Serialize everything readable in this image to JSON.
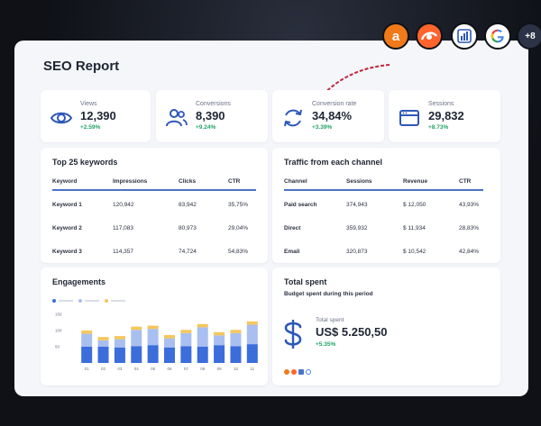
{
  "report": {
    "title": "SEO Report"
  },
  "integrations": {
    "more_count": "+8",
    "icons": [
      "ahrefs-icon",
      "semrush-icon",
      "google-analytics-icon",
      "google-icon"
    ]
  },
  "kpis": [
    {
      "label": "Views",
      "value": "12,390",
      "delta": "+2.59%",
      "icon": "eye-icon"
    },
    {
      "label": "Conversions",
      "value": "8,390",
      "delta": "+9.24%",
      "icon": "users-icon"
    },
    {
      "label": "Conversion rate",
      "value": "34,84%",
      "delta": "+3.39%",
      "icon": "refresh-icon"
    },
    {
      "label": "Sessions",
      "value": "29,832",
      "delta": "+8.73%",
      "icon": "browser-window-icon"
    }
  ],
  "keywords_table": {
    "title": "Top 25 keywords",
    "headers": [
      "Keyword",
      "Impressions",
      "Clicks",
      "CTR"
    ],
    "rows": [
      [
        "Keyword 1",
        "120,942",
        "83,942",
        "35,75%"
      ],
      [
        "Keyword 2",
        "117,083",
        "80,973",
        "29,04%"
      ],
      [
        "Keyword 3",
        "114,357",
        "74,724",
        "54,83%"
      ]
    ]
  },
  "traffic_table": {
    "title": "Traffic from each channel",
    "headers": [
      "Channel",
      "Sessions",
      "Revenue",
      "CTR"
    ],
    "rows": [
      [
        "Paid search",
        "374,943",
        "$ 12,050",
        "43,93%"
      ],
      [
        "Direct",
        "359,932",
        "$ 11,934",
        "28,83%"
      ],
      [
        "Email",
        "320,873",
        "$ 10,542",
        "42,84%"
      ]
    ]
  },
  "engagements": {
    "title": "Engagements"
  },
  "chart_data": {
    "type": "bar",
    "stacked": true,
    "categories": [
      "01",
      "02",
      "03",
      "04",
      "05",
      "06",
      "07",
      "08",
      "09",
      "10",
      "11"
    ],
    "series": [
      {
        "values": [
          50,
          50,
          48,
          52,
          55,
          48,
          52,
          50,
          55,
          52,
          58
        ],
        "color": "#3b6ddb"
      },
      {
        "values": [
          40,
          20,
          25,
          50,
          50,
          28,
          40,
          60,
          30,
          40,
          60
        ],
        "color": "#a9bff0"
      },
      {
        "values": [
          10,
          10,
          10,
          10,
          10,
          10,
          10,
          10,
          10,
          10,
          10
        ],
        "color": "#f5c65b"
      }
    ],
    "yticks": [
      0,
      50,
      100,
      150
    ],
    "ylim": [
      0,
      150
    ],
    "legend_colors": [
      "#3b6ddb",
      "#a9bff0",
      "#f5c65b"
    ],
    "grid": false
  },
  "total_spent": {
    "title": "Total spent",
    "subtitle": "Budget spent during this period",
    "label": "Total spent",
    "value": "US$ 5.250,50",
    "delta": "+5.35%",
    "icon": "dollar-icon",
    "source_icons": [
      "ahrefs-icon",
      "semrush-icon",
      "google-analytics-icon",
      "google-icon"
    ]
  },
  "colors": {
    "accent_blue": "#3b6ddb",
    "positive_green": "#21a366",
    "arrow_red": "#c0283b"
  }
}
